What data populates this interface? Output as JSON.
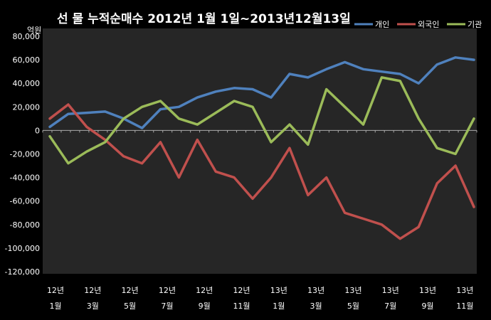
{
  "chart_data": {
    "type": "line",
    "title": "선 물 누적순매수 2012년 1월 1일~2013년12월13일",
    "ylabel": "억원",
    "ylim": [
      -120000,
      80000
    ],
    "yticks": [
      "80,000",
      "60,000",
      "40,000",
      "20,000",
      "0",
      "-20,000",
      "-40,000",
      "-60,000",
      "-80,000",
      "-100,000",
      "-120,000"
    ],
    "xticks": [
      {
        "year": "12년",
        "month": "1월"
      },
      {
        "year": "12년",
        "month": "3월"
      },
      {
        "year": "12년",
        "month": "5월"
      },
      {
        "year": "12년",
        "month": "7월"
      },
      {
        "year": "12년",
        "month": "9월"
      },
      {
        "year": "12년",
        "month": "11월"
      },
      {
        "year": "13년",
        "month": "1월"
      },
      {
        "year": "13년",
        "month": "3월"
      },
      {
        "year": "13년",
        "month": "5월"
      },
      {
        "year": "13년",
        "month": "7월"
      },
      {
        "year": "13년",
        "month": "9월"
      },
      {
        "year": "13년",
        "month": "11월"
      }
    ],
    "x": [
      "2012-01",
      "2012-02",
      "2012-03",
      "2012-04",
      "2012-05",
      "2012-06",
      "2012-07",
      "2012-08",
      "2012-09",
      "2012-10",
      "2012-11",
      "2012-12",
      "2013-01",
      "2013-02",
      "2013-03",
      "2013-04",
      "2013-05",
      "2013-06",
      "2013-07",
      "2013-08",
      "2013-09",
      "2013-10",
      "2013-11",
      "2013-12"
    ],
    "series": [
      {
        "name": "개인",
        "color": "#4f81bd",
        "values": [
          3000,
          14000,
          15000,
          16000,
          10000,
          2000,
          18000,
          20000,
          28000,
          33000,
          36000,
          35000,
          28000,
          48000,
          45000,
          52000,
          58000,
          52000,
          50000,
          48000,
          40000,
          56000,
          62000,
          60000
        ]
      },
      {
        "name": "외국인",
        "color": "#c0504d",
        "values": [
          10000,
          22000,
          3000,
          -8000,
          -22000,
          -28000,
          -10000,
          -40000,
          -8000,
          -35000,
          -40000,
          -58000,
          -40000,
          -15000,
          -55000,
          -40000,
          -70000,
          -75000,
          -80000,
          -92000,
          -82000,
          -45000,
          -30000,
          -65000
        ]
      },
      {
        "name": "기관",
        "color": "#9bbb59",
        "values": [
          -5000,
          -28000,
          -18000,
          -10000,
          10000,
          20000,
          25000,
          10000,
          5000,
          15000,
          25000,
          20000,
          -10000,
          5000,
          -12000,
          35000,
          20000,
          5000,
          45000,
          42000,
          10000,
          -15000,
          -20000,
          10000
        ]
      }
    ],
    "legend_position": "top-right",
    "grid": false
  }
}
